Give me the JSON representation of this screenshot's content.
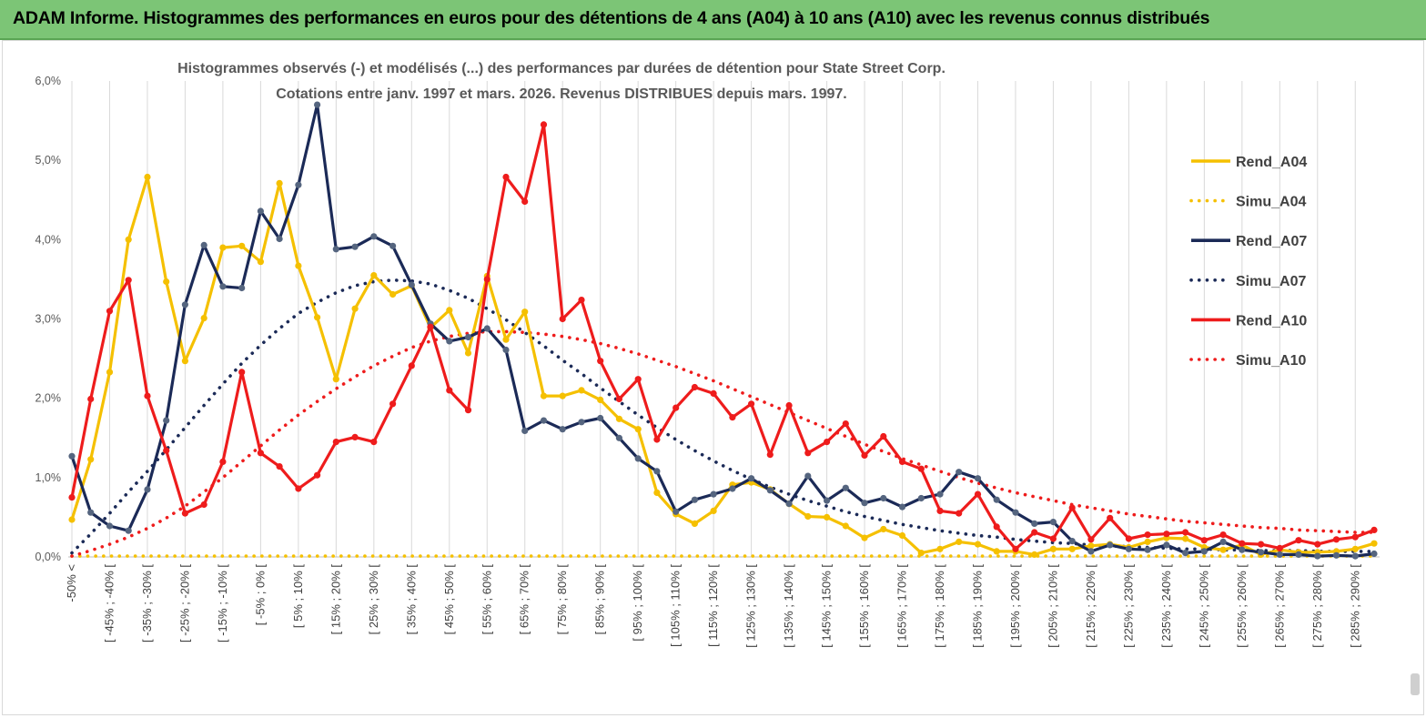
{
  "header": {
    "title": "ADAM Informe. Histogrammes des performances en euros pour des détentions de 4 ans (A04) à 10 ans (A10) avec les revenus connus distribués"
  },
  "colors": {
    "a04": "#f5c000",
    "a07": "#1b2a57",
    "a07_marker": "#55657f",
    "a10": "#ee1c1c",
    "grid": "#d9d9d9",
    "header_bg": "#7cc576"
  },
  "chart_data": {
    "type": "line",
    "title_line1": "Histogrammes observés (-) et modélisés (...) des performances par durées de détention pour State Street Corp.",
    "title_line2": "Cotations entre janv. 1997 et mars. 2026. Revenus DISTRIBUES depuis mars. 1997.",
    "ylim": [
      0,
      6
    ],
    "yticks": [
      "0,0%",
      "1,0%",
      "2,0%",
      "3,0%",
      "4,0%",
      "5,0%",
      "6,0%"
    ],
    "x_labels": [
      "-50% <",
      "[ -45% ; -40% [",
      "[ -35% ; -30% [",
      "[ -25% ; -20% [",
      "[ -15% ; -10% [",
      "[ -5% ; 0% [",
      "[ 5% ; 10% [",
      "[ 15% ; 20% [",
      "[ 25% ; 30% [",
      "[ 35% ; 40% [",
      "[ 45% ; 50% [",
      "[ 55% ; 60% [",
      "[ 65% ; 70% [",
      "[ 75% ; 80% [",
      "[ 85% ; 90% [",
      "[ 95% ; 100% [",
      "[ 105% ; 110% [",
      "[ 115% ; 120% [",
      "[ 125% ; 130% [",
      "[ 135% ; 140% [",
      "[ 145% ; 150% [",
      "[ 155% ; 160% [",
      "[ 165% ; 170% [",
      "[ 175% ; 180% [",
      "[ 185% ; 190% [",
      "[ 195% ; 200% [",
      "[ 205% ; 210% [",
      "[ 215% ; 220% [",
      "[ 225% ; 230% [",
      "[ 235% ; 240% [",
      "[ 245% ; 250% [",
      "[ 255% ; 260% [",
      "[ 265% ; 270% [",
      "[ 275% ; 280% [",
      "[ 285% ; 290% ["
    ],
    "n_points": 70,
    "label_every": 2,
    "legend": [
      {
        "name": "Rend_A04",
        "style": "solid",
        "color": "#f5c000"
      },
      {
        "name": "Simu_A04",
        "style": "dotted",
        "color": "#f5c000"
      },
      {
        "name": "Rend_A07",
        "style": "solid",
        "color": "#1b2a57"
      },
      {
        "name": "Simu_A07",
        "style": "dotted",
        "color": "#1b2a57"
      },
      {
        "name": "Rend_A10",
        "style": "solid",
        "color": "#ee1c1c"
      },
      {
        "name": "Simu_A10",
        "style": "dotted",
        "color": "#ee1c1c"
      }
    ],
    "series": [
      {
        "name": "Rend_A04",
        "style": "solid",
        "color": "#f5c000",
        "values": [
          0.47,
          1.23,
          2.33,
          4.0,
          4.79,
          3.47,
          2.47,
          3.01,
          3.9,
          3.92,
          3.72,
          4.71,
          3.67,
          3.02,
          2.24,
          3.13,
          3.55,
          3.31,
          3.42,
          2.89,
          3.11,
          2.57,
          3.54,
          2.74,
          3.09,
          2.03,
          2.03,
          2.1,
          1.98,
          1.74,
          1.61,
          0.81,
          0.54,
          0.42,
          0.58,
          0.91,
          0.94,
          0.85,
          0.67,
          0.51,
          0.5,
          0.39,
          0.24,
          0.35,
          0.27,
          0.05,
          0.1,
          0.19,
          0.16,
          0.07,
          0.07,
          0.03,
          0.1,
          0.1,
          0.14,
          0.16,
          0.12,
          0.19,
          0.24,
          0.23,
          0.12,
          0.09,
          0.15,
          0.03,
          0.09,
          0.06,
          0.06,
          0.07,
          0.1,
          0.17
        ]
      },
      {
        "name": "Simu_A04",
        "style": "dotted",
        "color": "#f5c000",
        "values": [
          0.01,
          0.01,
          0.01,
          0.01,
          0.01,
          0.01,
          0.01,
          0.01,
          0.01,
          0.01,
          0.01,
          0.01,
          0.01,
          0.01,
          0.01,
          0.01,
          0.01,
          0.01,
          0.01,
          0.01,
          0.01,
          0.01,
          0.01,
          0.01,
          0.01,
          0.01,
          0.01,
          0.01,
          0.01,
          0.01,
          0.01,
          0.01,
          0.01,
          0.01,
          0.01,
          0.01,
          0.01,
          0.01,
          0.01,
          0.01,
          0.01,
          0.01,
          0.01,
          0.01,
          0.01,
          0.01,
          0.01,
          0.01,
          0.01,
          0.01,
          0.01,
          0.01,
          0.01,
          0.01,
          0.01,
          0.01,
          0.01,
          0.01,
          0.01,
          0.01,
          0.01,
          0.01,
          0.01,
          0.01,
          0.01,
          0.01,
          0.01,
          0.01,
          0.01,
          0.01
        ]
      },
      {
        "name": "Rend_A07",
        "style": "solid",
        "color": "#1b2a57",
        "values": [
          1.27,
          0.56,
          0.39,
          0.33,
          0.85,
          1.72,
          3.18,
          3.93,
          3.41,
          3.39,
          4.36,
          4.01,
          4.69,
          5.7,
          3.88,
          3.91,
          4.04,
          3.92,
          3.43,
          2.94,
          2.72,
          2.77,
          2.88,
          2.61,
          1.59,
          1.72,
          1.61,
          1.7,
          1.75,
          1.5,
          1.24,
          1.08,
          0.57,
          0.72,
          0.79,
          0.86,
          0.99,
          0.84,
          0.67,
          1.02,
          0.71,
          0.87,
          0.68,
          0.74,
          0.63,
          0.74,
          0.79,
          1.07,
          0.99,
          0.72,
          0.56,
          0.42,
          0.44,
          0.2,
          0.07,
          0.15,
          0.1,
          0.09,
          0.15,
          0.05,
          0.07,
          0.19,
          0.09,
          0.06,
          0.03,
          0.03,
          0.01,
          0.02,
          0.01,
          0.04
        ]
      },
      {
        "name": "Simu_A07",
        "style": "dotted",
        "color": "#1b2a57",
        "values": [
          0.05,
          0.29,
          0.55,
          0.82,
          1.08,
          1.35,
          1.63,
          1.91,
          2.18,
          2.44,
          2.67,
          2.88,
          3.07,
          3.21,
          3.33,
          3.42,
          3.47,
          3.49,
          3.48,
          3.44,
          3.36,
          3.26,
          3.13,
          2.99,
          2.83,
          2.66,
          2.48,
          2.31,
          2.13,
          1.96,
          1.79,
          1.63,
          1.48,
          1.34,
          1.21,
          1.09,
          0.98,
          0.88,
          0.79,
          0.71,
          0.64,
          0.57,
          0.51,
          0.46,
          0.41,
          0.37,
          0.33,
          0.3,
          0.27,
          0.25,
          0.22,
          0.2,
          0.18,
          0.17,
          0.15,
          0.14,
          0.13,
          0.12,
          0.11,
          0.1,
          0.1,
          0.09,
          0.09,
          0.08,
          0.08,
          0.08,
          0.07,
          0.07,
          0.07,
          0.07
        ]
      },
      {
        "name": "Rend_A10",
        "style": "solid",
        "color": "#ee1c1c",
        "values": [
          0.75,
          1.99,
          3.1,
          3.49,
          2.03,
          1.34,
          0.55,
          0.66,
          1.2,
          2.33,
          1.31,
          1.14,
          0.86,
          1.03,
          1.45,
          1.51,
          1.45,
          1.93,
          2.41,
          2.9,
          2.1,
          1.85,
          3.5,
          4.79,
          4.48,
          5.45,
          3.0,
          3.24,
          2.47,
          1.99,
          2.24,
          1.48,
          1.88,
          2.14,
          2.06,
          1.76,
          1.93,
          1.29,
          1.91,
          1.31,
          1.45,
          1.68,
          1.28,
          1.52,
          1.2,
          1.11,
          0.58,
          0.55,
          0.79,
          0.38,
          0.1,
          0.31,
          0.23,
          0.62,
          0.22,
          0.49,
          0.23,
          0.28,
          0.29,
          0.31,
          0.21,
          0.28,
          0.17,
          0.16,
          0.11,
          0.21,
          0.16,
          0.22,
          0.25,
          0.34
        ]
      },
      {
        "name": "Simu_A10",
        "style": "dotted",
        "color": "#ee1c1c",
        "values": [
          0.01,
          0.08,
          0.16,
          0.25,
          0.36,
          0.49,
          0.64,
          0.82,
          1.0,
          1.2,
          1.4,
          1.6,
          1.79,
          1.96,
          2.12,
          2.27,
          2.41,
          2.53,
          2.64,
          2.72,
          2.78,
          2.82,
          2.84,
          2.84,
          2.83,
          2.81,
          2.78,
          2.74,
          2.69,
          2.63,
          2.56,
          2.48,
          2.4,
          2.31,
          2.22,
          2.12,
          2.02,
          1.92,
          1.82,
          1.72,
          1.62,
          1.52,
          1.42,
          1.33,
          1.24,
          1.16,
          1.08,
          1.0,
          0.93,
          0.87,
          0.81,
          0.76,
          0.71,
          0.66,
          0.62,
          0.58,
          0.54,
          0.51,
          0.48,
          0.45,
          0.43,
          0.41,
          0.39,
          0.37,
          0.36,
          0.34,
          0.33,
          0.32,
          0.31,
          0.31
        ]
      }
    ]
  }
}
